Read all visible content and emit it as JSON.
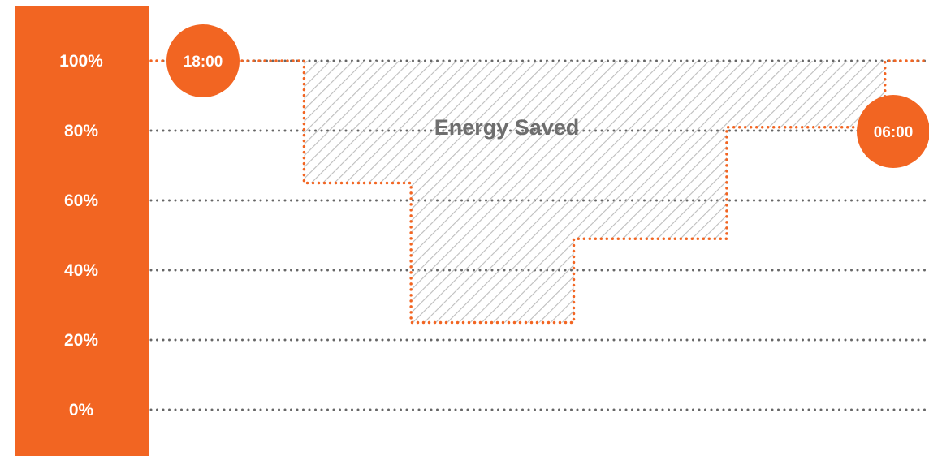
{
  "chart_data": {
    "type": "line",
    "title": "",
    "xlabel": "",
    "ylabel": "",
    "ylim": [
      0,
      100
    ],
    "yticks": [
      "0%",
      "20%",
      "40%",
      "60%",
      "80%",
      "100%"
    ],
    "ytick_values": [
      0,
      20,
      40,
      60,
      80,
      100
    ],
    "grid": true,
    "series": [
      {
        "x": [
          0,
          2.36,
          2.36,
          4.01,
          4.01,
          6.52,
          6.52,
          8.88,
          8.88,
          11.32,
          11.32,
          12
        ],
        "values": [
          100,
          100,
          65,
          65,
          25,
          25,
          49,
          49,
          81,
          81,
          100,
          100
        ]
      }
    ],
    "labels": {
      "start": "18:00",
      "end": "06:00",
      "annotation": "Energy Saved"
    },
    "colors": {
      "accent": "#f26522",
      "grid": "#666666",
      "hatch": "#bdbdbd",
      "annotation": "#6e6e6e"
    }
  }
}
